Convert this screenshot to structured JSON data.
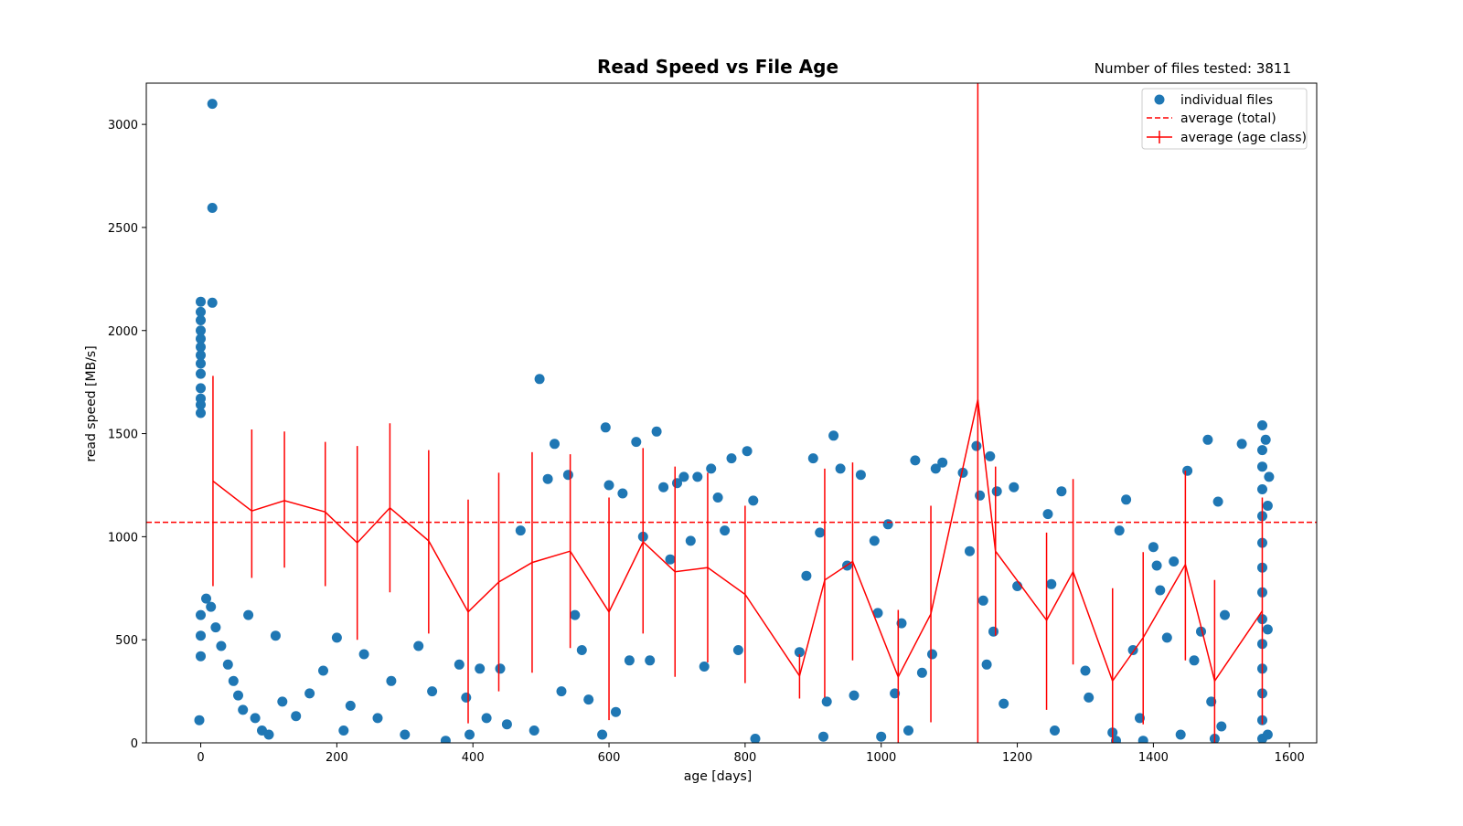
{
  "chart_data": {
    "type": "scatter",
    "title": "Read Speed vs File Age",
    "annotation": "Number of files tested: 3811",
    "xlabel": "age [days]",
    "ylabel": "read speed [MB/s]",
    "xlim": [
      -80,
      1640
    ],
    "ylim": [
      0,
      3200
    ],
    "x_ticks": [
      0,
      200,
      400,
      600,
      800,
      1000,
      1200,
      1400,
      1600
    ],
    "y_ticks": [
      0,
      500,
      1000,
      1500,
      2000,
      2500,
      3000
    ],
    "grid": false,
    "legend_position": "top-right",
    "colors": {
      "points": "#1f77b4",
      "average": "#ff0000"
    },
    "series": [
      {
        "name": "individual files",
        "kind": "scatter",
        "points": [
          [
            17,
            3100
          ],
          [
            17,
            2595
          ],
          [
            17,
            2135
          ],
          [
            0,
            2140
          ],
          [
            0,
            2090
          ],
          [
            0,
            2050
          ],
          [
            0,
            2000
          ],
          [
            0,
            1960
          ],
          [
            0,
            1920
          ],
          [
            0,
            1880
          ],
          [
            0,
            1840
          ],
          [
            0,
            1790
          ],
          [
            0,
            1720
          ],
          [
            0,
            1670
          ],
          [
            0,
            1640
          ],
          [
            0,
            1600
          ],
          [
            -2,
            110
          ],
          [
            0,
            420
          ],
          [
            0,
            520
          ],
          [
            0,
            620
          ],
          [
            8,
            700
          ],
          [
            15,
            660
          ],
          [
            22,
            560
          ],
          [
            30,
            470
          ],
          [
            40,
            380
          ],
          [
            48,
            300
          ],
          [
            55,
            230
          ],
          [
            62,
            160
          ],
          [
            70,
            620
          ],
          [
            80,
            120
          ],
          [
            90,
            60
          ],
          [
            100,
            40
          ],
          [
            110,
            520
          ],
          [
            120,
            200
          ],
          [
            140,
            130
          ],
          [
            160,
            240
          ],
          [
            180,
            350
          ],
          [
            200,
            510
          ],
          [
            210,
            60
          ],
          [
            220,
            180
          ],
          [
            240,
            430
          ],
          [
            260,
            120
          ],
          [
            280,
            300
          ],
          [
            300,
            40
          ],
          [
            320,
            470
          ],
          [
            340,
            250
          ],
          [
            360,
            10
          ],
          [
            380,
            380
          ],
          [
            390,
            220
          ],
          [
            395,
            40
          ],
          [
            410,
            360
          ],
          [
            420,
            120
          ],
          [
            440,
            360
          ],
          [
            450,
            90
          ],
          [
            470,
            1030
          ],
          [
            490,
            60
          ],
          [
            498,
            1765
          ],
          [
            510,
            1280
          ],
          [
            520,
            1450
          ],
          [
            530,
            250
          ],
          [
            540,
            1300
          ],
          [
            550,
            620
          ],
          [
            560,
            450
          ],
          [
            570,
            210
          ],
          [
            590,
            40
          ],
          [
            595,
            1530
          ],
          [
            600,
            1250
          ],
          [
            610,
            150
          ],
          [
            620,
            1210
          ],
          [
            630,
            400
          ],
          [
            640,
            1460
          ],
          [
            650,
            1000
          ],
          [
            660,
            400
          ],
          [
            670,
            1510
          ],
          [
            680,
            1240
          ],
          [
            690,
            890
          ],
          [
            700,
            1260
          ],
          [
            710,
            1290
          ],
          [
            720,
            980
          ],
          [
            730,
            1290
          ],
          [
            740,
            370
          ],
          [
            750,
            1330
          ],
          [
            760,
            1190
          ],
          [
            770,
            1030
          ],
          [
            780,
            1380
          ],
          [
            790,
            450
          ],
          [
            803,
            1415
          ],
          [
            812,
            1175
          ],
          [
            815,
            20
          ],
          [
            880,
            440
          ],
          [
            890,
            810
          ],
          [
            900,
            1380
          ],
          [
            910,
            1020
          ],
          [
            915,
            30
          ],
          [
            920,
            200
          ],
          [
            930,
            1490
          ],
          [
            940,
            1330
          ],
          [
            950,
            860
          ],
          [
            960,
            230
          ],
          [
            970,
            1300
          ],
          [
            990,
            980
          ],
          [
            995,
            630
          ],
          [
            1000,
            30
          ],
          [
            1010,
            1060
          ],
          [
            1020,
            240
          ],
          [
            1030,
            580
          ],
          [
            1040,
            60
          ],
          [
            1050,
            1370
          ],
          [
            1060,
            340
          ],
          [
            1075,
            430
          ],
          [
            1080,
            1330
          ],
          [
            1090,
            1360
          ],
          [
            1120,
            1310
          ],
          [
            1130,
            930
          ],
          [
            1140,
            1440
          ],
          [
            1145,
            1200
          ],
          [
            1150,
            690
          ],
          [
            1155,
            380
          ],
          [
            1160,
            1390
          ],
          [
            1165,
            540
          ],
          [
            1170,
            1220
          ],
          [
            1180,
            190
          ],
          [
            1195,
            1240
          ],
          [
            1200,
            760
          ],
          [
            1245,
            1110
          ],
          [
            1250,
            770
          ],
          [
            1255,
            60
          ],
          [
            1265,
            1220
          ],
          [
            1300,
            350
          ],
          [
            1305,
            220
          ],
          [
            1340,
            50
          ],
          [
            1345,
            10
          ],
          [
            1350,
            1030
          ],
          [
            1360,
            1180
          ],
          [
            1370,
            450
          ],
          [
            1380,
            120
          ],
          [
            1385,
            10
          ],
          [
            1400,
            950
          ],
          [
            1405,
            860
          ],
          [
            1410,
            740
          ],
          [
            1420,
            510
          ],
          [
            1430,
            880
          ],
          [
            1440,
            40
          ],
          [
            1450,
            1320
          ],
          [
            1460,
            400
          ],
          [
            1470,
            540
          ],
          [
            1480,
            1470
          ],
          [
            1485,
            200
          ],
          [
            1490,
            20
          ],
          [
            1495,
            1170
          ],
          [
            1500,
            80
          ],
          [
            1505,
            620
          ],
          [
            1530,
            1450
          ],
          [
            1560,
            1540
          ],
          [
            1565,
            1470
          ],
          [
            1570,
            1290
          ],
          [
            1560,
            1420
          ],
          [
            1560,
            1340
          ],
          [
            1560,
            1230
          ],
          [
            1560,
            1100
          ],
          [
            1560,
            970
          ],
          [
            1560,
            850
          ],
          [
            1560,
            730
          ],
          [
            1560,
            600
          ],
          [
            1560,
            480
          ],
          [
            1560,
            360
          ],
          [
            1560,
            240
          ],
          [
            1560,
            110
          ],
          [
            1560,
            20
          ],
          [
            1568,
            1150
          ],
          [
            1568,
            550
          ],
          [
            1568,
            40
          ]
        ]
      },
      {
        "name": "average (total)",
        "kind": "hline",
        "value": 1070
      },
      {
        "name": "average (age class)",
        "kind": "errorbar_line",
        "points": [
          [
            18,
            1270,
            1780,
            760
          ],
          [
            75,
            1125,
            1520,
            800
          ],
          [
            123,
            1175,
            1510,
            850
          ],
          [
            183,
            1120,
            1460,
            760
          ],
          [
            230,
            970,
            1440,
            500
          ],
          [
            278,
            1140,
            1550,
            730
          ],
          [
            335,
            980,
            1420,
            530
          ],
          [
            393,
            635,
            1180,
            95
          ],
          [
            438,
            780,
            1310,
            250
          ],
          [
            487,
            875,
            1410,
            340
          ],
          [
            543,
            930,
            1400,
            460
          ],
          [
            600,
            635,
            1190,
            110
          ],
          [
            650,
            975,
            1430,
            530
          ],
          [
            697,
            830,
            1340,
            320
          ],
          [
            745,
            850,
            1310,
            390
          ],
          [
            800,
            720,
            1150,
            290
          ],
          [
            880,
            325,
            430,
            215
          ],
          [
            917,
            790,
            1330,
            220
          ],
          [
            958,
            880,
            1360,
            400
          ],
          [
            1025,
            320,
            645,
            0
          ],
          [
            1073,
            625,
            1150,
            100
          ],
          [
            1142,
            1665,
            3200,
            0
          ],
          [
            1168,
            930,
            1340,
            520
          ],
          [
            1243,
            595,
            1020,
            160
          ],
          [
            1282,
            830,
            1280,
            380
          ],
          [
            1340,
            300,
            750,
            0
          ],
          [
            1385,
            510,
            925,
            90
          ],
          [
            1447,
            865,
            1320,
            400
          ],
          [
            1490,
            300,
            790,
            0
          ],
          [
            1560,
            640,
            1190,
            90
          ]
        ]
      }
    ]
  }
}
